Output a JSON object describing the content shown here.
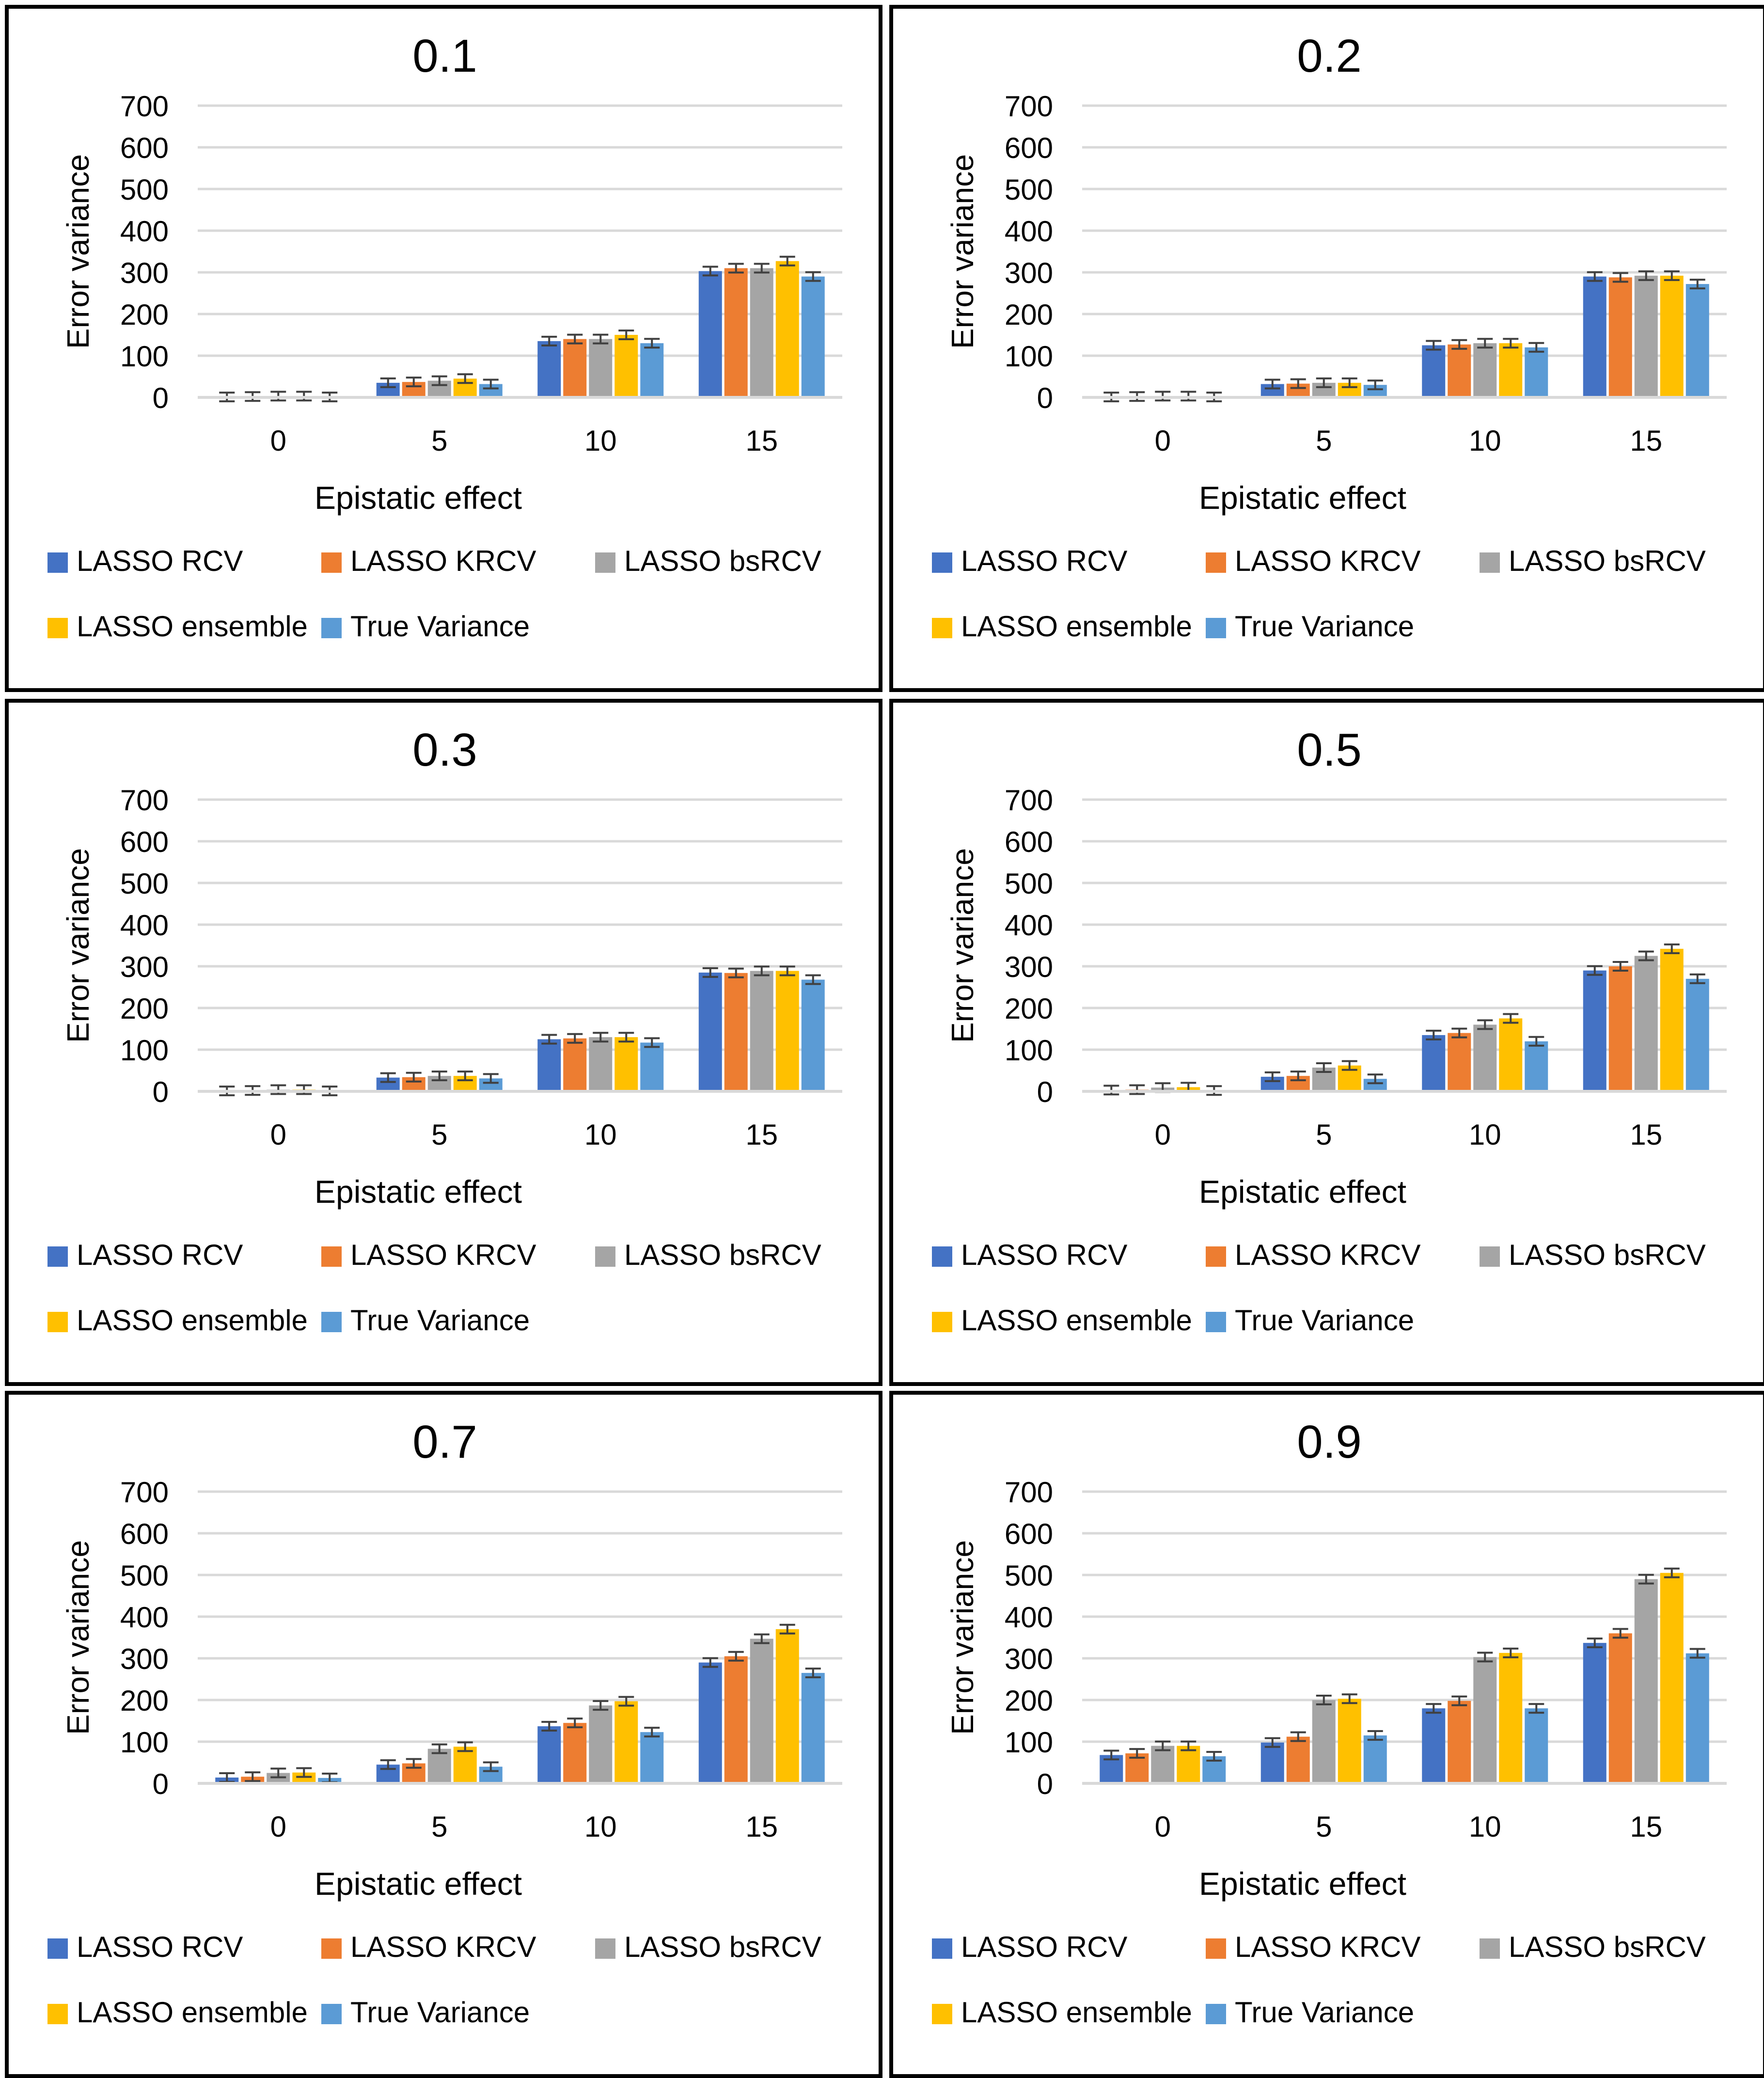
{
  "colors": {
    "LASSO RCV": "#4472c4",
    "LASSO KRCV": "#ed7d31",
    "LASSO bsRCV": "#a5a5a5",
    "LASSO ensemble": "#ffc000",
    "True Variance": "#5b9bd5",
    "gridline": "#d9d9d9",
    "errorbar": "#404040",
    "border": "#000000"
  },
  "chart_data": [
    {
      "type": "bar",
      "title": "0.1",
      "xlabel": "Epistatic effect",
      "ylabel": "Error variance",
      "ylim": [
        0,
        700
      ],
      "yticks": [
        "700",
        "600",
        "500",
        "400",
        "300",
        "200",
        "100",
        "0"
      ],
      "categories": [
        "0",
        "5",
        "10",
        "15"
      ],
      "series": [
        {
          "name": "LASSO RCV",
          "values": [
            1,
            35,
            135,
            303
          ]
        },
        {
          "name": "LASSO KRCV",
          "values": [
            2,
            37,
            140,
            310
          ]
        },
        {
          "name": "LASSO bsRCV",
          "values": [
            3,
            40,
            140,
            310
          ]
        },
        {
          "name": "LASSO ensemble",
          "values": [
            3,
            45,
            150,
            327
          ]
        },
        {
          "name": "True Variance",
          "values": [
            1,
            32,
            130,
            290
          ]
        }
      ],
      "legend": [
        "LASSO RCV",
        "LASSO KRCV",
        "LASSO bsRCV",
        "LASSO ensemble",
        "True Variance"
      ]
    },
    {
      "type": "bar",
      "title": "0.2",
      "xlabel": "Epistatic effect",
      "ylabel": "Error variance",
      "ylim": [
        0,
        700
      ],
      "yticks": [
        "700",
        "600",
        "500",
        "400",
        "300",
        "200",
        "100",
        "0"
      ],
      "categories": [
        "0",
        "5",
        "10",
        "15"
      ],
      "series": [
        {
          "name": "LASSO RCV",
          "values": [
            1,
            32,
            125,
            290
          ]
        },
        {
          "name": "LASSO KRCV",
          "values": [
            2,
            33,
            127,
            288
          ]
        },
        {
          "name": "LASSO bsRCV",
          "values": [
            3,
            35,
            130,
            292
          ]
        },
        {
          "name": "LASSO ensemble",
          "values": [
            3,
            35,
            130,
            292
          ]
        },
        {
          "name": "True Variance",
          "values": [
            1,
            30,
            120,
            272
          ]
        }
      ],
      "legend": [
        "LASSO RCV",
        "LASSO KRCV",
        "LASSO bsRCV",
        "LASSO ensemble",
        "True Variance"
      ]
    },
    {
      "type": "bar",
      "title": "0.3",
      "xlabel": "Epistatic effect",
      "ylabel": "Error variance",
      "ylim": [
        0,
        700
      ],
      "yticks": [
        "700",
        "600",
        "500",
        "400",
        "300",
        "200",
        "100",
        "0"
      ],
      "categories": [
        "0",
        "5",
        "10",
        "15"
      ],
      "series": [
        {
          "name": "LASSO RCV",
          "values": [
            1,
            33,
            125,
            285
          ]
        },
        {
          "name": "LASSO KRCV",
          "values": [
            2,
            34,
            127,
            284
          ]
        },
        {
          "name": "LASSO bsRCV",
          "values": [
            4,
            37,
            130,
            289
          ]
        },
        {
          "name": "LASSO ensemble",
          "values": [
            4,
            37,
            130,
            289
          ]
        },
        {
          "name": "True Variance",
          "values": [
            1,
            31,
            117,
            268
          ]
        }
      ],
      "legend": [
        "LASSO RCV",
        "LASSO KRCV",
        "LASSO bsRCV",
        "LASSO ensemble",
        "True Variance"
      ]
    },
    {
      "type": "bar",
      "title": "0.5",
      "xlabel": "Epistatic effect",
      "ylabel": "Error variance",
      "ylim": [
        0,
        700
      ],
      "yticks": [
        "700",
        "600",
        "500",
        "400",
        "300",
        "200",
        "100",
        "0"
      ],
      "categories": [
        "0",
        "5",
        "10",
        "15"
      ],
      "series": [
        {
          "name": "LASSO RCV",
          "values": [
            3,
            35,
            135,
            290
          ]
        },
        {
          "name": "LASSO KRCV",
          "values": [
            4,
            37,
            140,
            300
          ]
        },
        {
          "name": "LASSO bsRCV",
          "values": [
            9,
            57,
            160,
            325
          ]
        },
        {
          "name": "LASSO ensemble",
          "values": [
            10,
            62,
            175,
            342
          ]
        },
        {
          "name": "True Variance",
          "values": [
            2,
            30,
            120,
            270
          ]
        }
      ],
      "legend": [
        "LASSO RCV",
        "LASSO KRCV",
        "LASSO bsRCV",
        "LASSO ensemble",
        "True Variance"
      ]
    },
    {
      "type": "bar",
      "title": "0.7",
      "xlabel": "Epistatic effect",
      "ylabel": "Error variance",
      "ylim": [
        0,
        700
      ],
      "yticks": [
        "700",
        "600",
        "500",
        "400",
        "300",
        "200",
        "100",
        "0"
      ],
      "categories": [
        "0",
        "5",
        "10",
        "15"
      ],
      "series": [
        {
          "name": "LASSO RCV",
          "values": [
            14,
            45,
            137,
            290
          ]
        },
        {
          "name": "LASSO KRCV",
          "values": [
            16,
            48,
            145,
            305
          ]
        },
        {
          "name": "LASSO bsRCV",
          "values": [
            25,
            83,
            187,
            347
          ]
        },
        {
          "name": "LASSO ensemble",
          "values": [
            26,
            88,
            197,
            370
          ]
        },
        {
          "name": "True Variance",
          "values": [
            13,
            40,
            123,
            265
          ]
        }
      ],
      "legend": [
        "LASSO RCV",
        "LASSO KRCV",
        "LASSO bsRCV",
        "LASSO ensemble",
        "True Variance"
      ]
    },
    {
      "type": "bar",
      "title": "0.9",
      "xlabel": "Epistatic effect",
      "ylabel": "Error variance",
      "ylim": [
        0,
        700
      ],
      "yticks": [
        "700",
        "600",
        "500",
        "400",
        "300",
        "200",
        "100",
        "0"
      ],
      "categories": [
        "0",
        "5",
        "10",
        "15"
      ],
      "series": [
        {
          "name": "LASSO RCV",
          "values": [
            68,
            98,
            180,
            337
          ]
        },
        {
          "name": "LASSO KRCV",
          "values": [
            72,
            112,
            198,
            360
          ]
        },
        {
          "name": "LASSO bsRCV",
          "values": [
            90,
            200,
            303,
            490
          ]
        },
        {
          "name": "LASSO ensemble",
          "values": [
            90,
            203,
            313,
            505
          ]
        },
        {
          "name": "True Variance",
          "values": [
            65,
            115,
            180,
            312
          ]
        }
      ],
      "legend": [
        "LASSO RCV",
        "LASSO KRCV",
        "LASSO bsRCV",
        "LASSO ensemble",
        "True Variance"
      ]
    }
  ]
}
